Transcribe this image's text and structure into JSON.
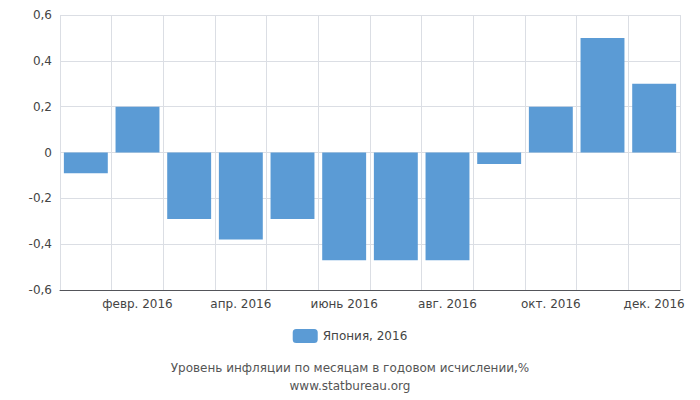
{
  "chart_data": {
    "type": "bar",
    "categories": [
      null,
      "февр. 2016",
      null,
      "апр. 2016",
      null,
      "июнь 2016",
      null,
      "авг. 2016",
      null,
      "окт. 2016",
      null,
      "дек. 2016"
    ],
    "series": [
      {
        "name": "Япония, 2016",
        "color": "#5B9BD5",
        "values": [
          -0.09,
          0.2,
          -0.29,
          -0.38,
          -0.29,
          -0.47,
          -0.47,
          -0.47,
          -0.05,
          0.2,
          0.5,
          0.3
        ]
      }
    ],
    "ylim": [
      -0.6,
      0.6
    ],
    "yticks": [
      {
        "value": -0.6,
        "label": "-0,6"
      },
      {
        "value": -0.4,
        "label": "-0,4"
      },
      {
        "value": -0.2,
        "label": "-0,2"
      },
      0,
      {
        "value": 0.2,
        "label": "0,2"
      },
      {
        "value": 0.4,
        "label": "0,4"
      },
      {
        "value": 0.6,
        "label": "0,6"
      }
    ],
    "grid": true,
    "legend": "bottom",
    "annotations": [
      "Уровень инфляции по месяцам в годовом исчислении,%",
      "www.statbureau.org"
    ]
  }
}
